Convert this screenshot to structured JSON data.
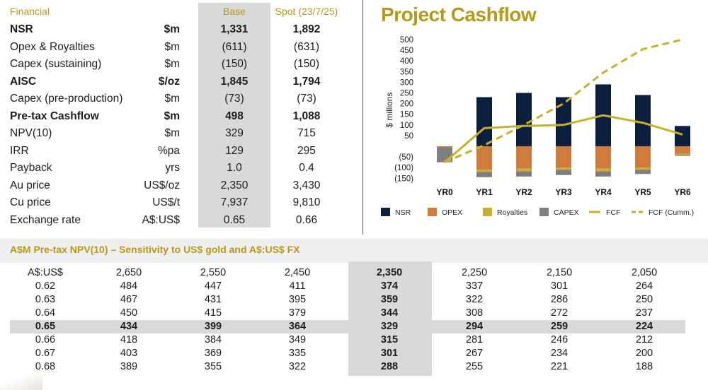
{
  "financial": {
    "header": {
      "label": "Financial",
      "base": "Base",
      "spot": "Spot (23/7/25)"
    },
    "rows": [
      {
        "label": "NSR",
        "unit": "$m",
        "base": "1,331",
        "spot": "1,892",
        "bold": true
      },
      {
        "label": "Opex & Royalties",
        "unit": "$m",
        "base": "(611)",
        "spot": "(631)",
        "bold": false
      },
      {
        "label": "Capex (sustaining)",
        "unit": "$m",
        "base": "(150)",
        "spot": "(150)",
        "bold": false
      },
      {
        "label": "AISC",
        "unit": "$/oz",
        "base": "1,845",
        "spot": "1,794",
        "bold": true
      },
      {
        "label": "Capex (pre-production)",
        "unit": "$m",
        "base": "(73)",
        "spot": "(73)",
        "bold": false
      },
      {
        "label": "Pre-tax Cashflow",
        "unit": "$m",
        "base": "498",
        "spot": "1,088",
        "bold": true
      },
      {
        "label": "NPV(10)",
        "unit": "$m",
        "base": "329",
        "spot": "715",
        "bold": false
      },
      {
        "label": "IRR",
        "unit": "%pa",
        "base": "129",
        "spot": "295",
        "bold": false
      },
      {
        "label": "Payback",
        "unit": "yrs",
        "base": "1.0",
        "spot": "0.4",
        "bold": false
      },
      {
        "label": "Au price",
        "unit": "US$/oz",
        "base": "2,350",
        "spot": "3,430",
        "bold": false
      },
      {
        "label": "Cu price",
        "unit": "US$/t",
        "base": "7,937",
        "spot": "9,810",
        "bold": false
      },
      {
        "label": "Exchange rate",
        "unit": "A$:US$",
        "base": "0.65",
        "spot": "0.66",
        "bold": false
      }
    ]
  },
  "chart_data": {
    "type": "bar",
    "title": "Project Cashflow",
    "ylabel": "$ millions",
    "ylim": [
      -150,
      500
    ],
    "yticks": [
      "500",
      "450",
      "400",
      "350",
      "300",
      "250",
      "200",
      "150",
      "100",
      "50",
      "",
      "(50)",
      "(100)",
      "(150)"
    ],
    "ytick_values": [
      500,
      450,
      400,
      350,
      300,
      250,
      200,
      150,
      100,
      50,
      0,
      -50,
      -100,
      -150
    ],
    "categories": [
      "YR0",
      "YR1",
      "YR2",
      "YR3",
      "YR4",
      "YR5",
      "YR6"
    ],
    "series": [
      {
        "name": "NSR",
        "kind": "bar",
        "color": "#0d1f3f",
        "values": [
          0,
          230,
          250,
          230,
          290,
          240,
          95
        ]
      },
      {
        "name": "OPEX",
        "kind": "bar",
        "color": "#d07a3c",
        "values": [
          -5,
          -110,
          -105,
          -100,
          -105,
          -100,
          -35
        ]
      },
      {
        "name": "Royalties",
        "kind": "bar",
        "color": "#c9b02a",
        "values": [
          0,
          -10,
          -12,
          -10,
          -12,
          -10,
          -5
        ]
      },
      {
        "name": "CAPEX",
        "kind": "bar",
        "color": "#7f7f7f",
        "values": [
          -70,
          -25,
          -25,
          -25,
          -25,
          -20,
          -5
        ]
      },
      {
        "name": "FCF",
        "kind": "line",
        "color": "#c9b02a",
        "values": [
          -75,
          85,
          95,
          100,
          145,
          110,
          55
        ]
      },
      {
        "name": "FCF (Cumm.)",
        "kind": "dashed",
        "color": "#c9b02a",
        "values": [
          -75,
          5,
          100,
          200,
          345,
          455,
          500
        ]
      }
    ],
    "legend_position": "bottom"
  },
  "sensitivity": {
    "title": "A$M Pre-tax NPV(10) – Sensitivity to US$ gold and A$:US$ FX",
    "header": [
      "A$:US$",
      "2,650",
      "2,550",
      "2,450",
      "2,350",
      "2,250",
      "2,150",
      "2,050"
    ],
    "rows": [
      [
        "0.62",
        "484",
        "447",
        "411",
        "374",
        "337",
        "301",
        "264"
      ],
      [
        "0.63",
        "467",
        "431",
        "395",
        "359",
        "322",
        "286",
        "250"
      ],
      [
        "0.64",
        "450",
        "415",
        "379",
        "344",
        "308",
        "272",
        "237"
      ],
      [
        "0.65",
        "434",
        "399",
        "364",
        "329",
        "294",
        "259",
        "224"
      ],
      [
        "0.66",
        "418",
        "384",
        "349",
        "315",
        "281",
        "246",
        "212"
      ],
      [
        "0.67",
        "403",
        "369",
        "335",
        "301",
        "267",
        "234",
        "200"
      ],
      [
        "0.68",
        "389",
        "355",
        "322",
        "288",
        "255",
        "221",
        "188"
      ]
    ],
    "highlight_row": 3,
    "highlight_col": 4
  }
}
